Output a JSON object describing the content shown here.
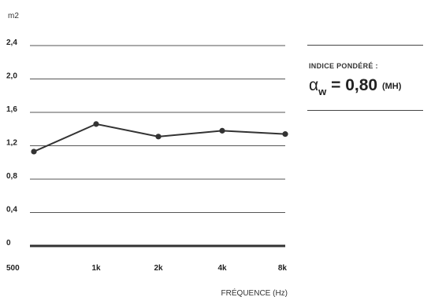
{
  "chart_data": {
    "type": "line",
    "ylabel": "m2",
    "xlabel": "FRÉQUENCE (Hz)",
    "categories": [
      "500",
      "1k",
      "2k",
      "4k",
      "8k"
    ],
    "series": [
      {
        "values": [
          1.13,
          1.46,
          1.31,
          1.38,
          1.34
        ]
      }
    ],
    "yticks": [
      "0",
      "0,4",
      "0,8",
      "1,2",
      "1,6",
      "2,0",
      "2,4"
    ],
    "ylim": [
      0,
      2.4
    ],
    "grid": true,
    "line_color": "#333333"
  },
  "summary": {
    "heading": "INDICE PONDÉRÉ :",
    "symbol": "α",
    "subscript": "w",
    "equals": "=",
    "value": "0,80",
    "qualifier": "(MH)"
  }
}
